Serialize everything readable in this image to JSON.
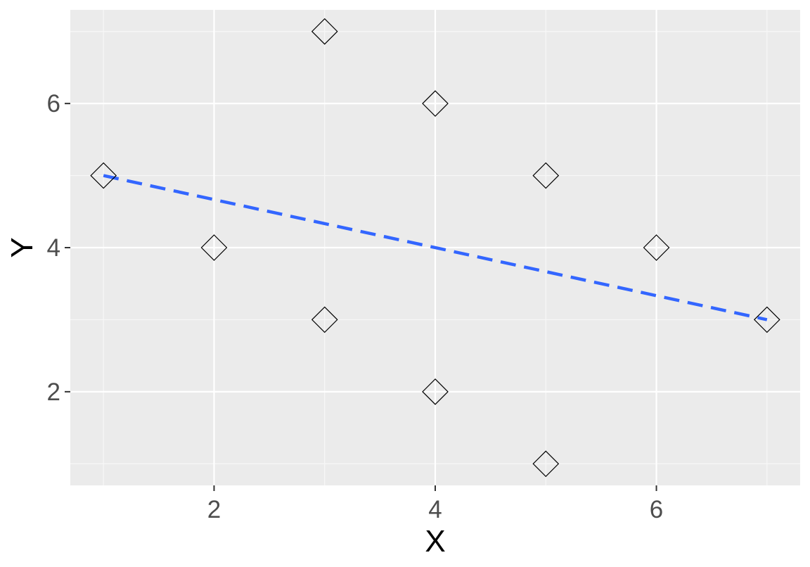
{
  "chart_data": {
    "type": "scatter",
    "title": "",
    "xlabel": "X",
    "ylabel": "Y",
    "xlim": [
      0.7,
      7.3
    ],
    "ylim": [
      0.7,
      7.3
    ],
    "x_ticks": [
      2,
      4,
      6
    ],
    "y_ticks": [
      2,
      4,
      6
    ],
    "x_minor_ticks": [
      1,
      3,
      5,
      7
    ],
    "y_minor_ticks": [
      1,
      3,
      5,
      7
    ],
    "grid": true,
    "legend": "none",
    "marker": "open-diamond",
    "series": [
      {
        "x": [
          1,
          2,
          3,
          3,
          4,
          4,
          5,
          5,
          6,
          7
        ],
        "y": [
          5,
          4,
          7,
          3,
          6,
          2,
          5,
          1,
          4,
          3
        ]
      }
    ],
    "trend_line": {
      "style": "dashed",
      "x": [
        1,
        7
      ],
      "y": [
        5,
        3
      ]
    },
    "colors": {
      "panel_background": "#ebebeb",
      "grid_major": "#ffffff",
      "grid_minor": "#f7f7f7",
      "marker_stroke": "#000000",
      "trend_line": "#3366ff",
      "tick_text": "#4d4d4d"
    }
  }
}
